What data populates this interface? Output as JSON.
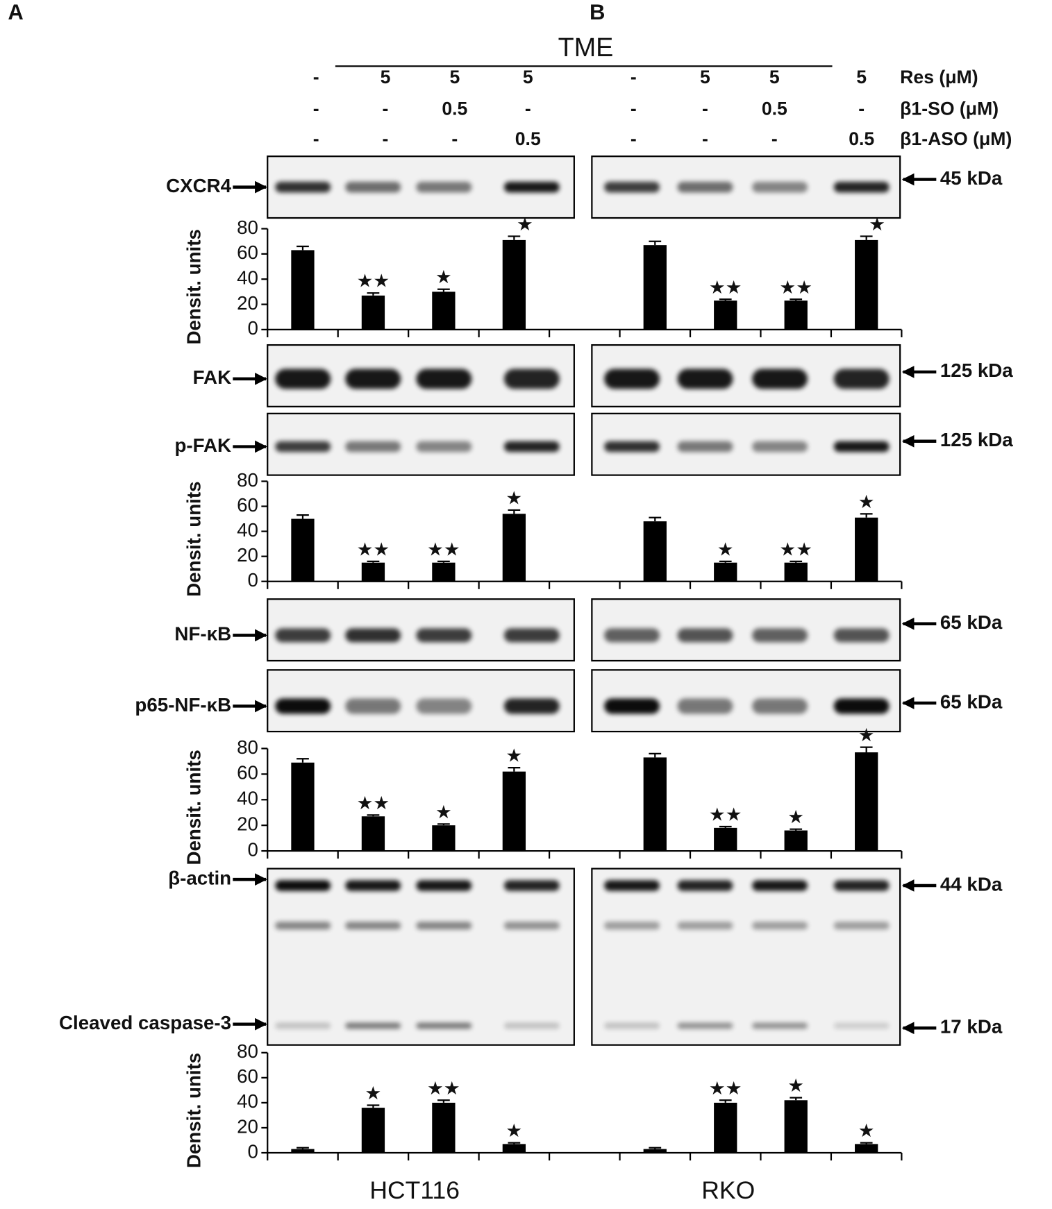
{
  "panels": [
    "A",
    "B"
  ],
  "header": "TME",
  "treatments": [
    {
      "label": "Res (μM)",
      "values": [
        "-",
        "5",
        "5",
        "5",
        "-",
        "5",
        "5",
        "5"
      ]
    },
    {
      "label": "β1-SO (μM)",
      "values": [
        "-",
        "-",
        "0.5",
        "-",
        "-",
        "-",
        "0.5",
        "-"
      ]
    },
    {
      "label": "β1-ASO (μM)",
      "values": [
        "-",
        "-",
        "-",
        "0.5",
        "-",
        "-",
        "-",
        "0.5"
      ]
    }
  ],
  "blots": [
    {
      "label": "CXCR4",
      "kda": "45 kDa"
    },
    {
      "label": "FAK",
      "kda": "125 kDa"
    },
    {
      "label": "p-FAK",
      "kda": "125 kDa"
    },
    {
      "label": "NF-κB",
      "kda": "65 kDa"
    },
    {
      "label": "p65-NF-κB",
      "kda": "65 kDa"
    },
    {
      "label": "β-actin",
      "kda": "44 kDa"
    },
    {
      "label": "Cleaved caspase-3",
      "kda": "17 kDa"
    }
  ],
  "cell_lines": [
    "HCT116",
    "RKO"
  ],
  "chart_data": [
    {
      "type": "bar",
      "y_label": "Densit. units",
      "color": "#000000",
      "categories": [
        null,
        null,
        null,
        null,
        null,
        null,
        null,
        null
      ],
      "values": [
        63,
        27,
        30,
        71,
        67,
        23,
        23,
        71
      ],
      "errors": [
        3,
        2,
        2,
        3,
        3,
        1,
        1,
        3
      ],
      "annotations": [
        null,
        "★★",
        "★",
        "★",
        null,
        "★★",
        "★★",
        "★"
      ],
      "ylim": [
        0,
        80
      ],
      "yticks": [
        0,
        20,
        40,
        60,
        80
      ]
    },
    {
      "type": "bar",
      "y_label": "Densit. units",
      "color": "#000000",
      "categories": [
        null,
        null,
        null,
        null,
        null,
        null,
        null,
        null
      ],
      "values": [
        50,
        15,
        15,
        54,
        48,
        15,
        15,
        51
      ],
      "errors": [
        3,
        1,
        1,
        3,
        3,
        1,
        1,
        3
      ],
      "annotations": [
        null,
        "★★",
        "★★",
        "★",
        null,
        "★",
        "★★",
        "★"
      ],
      "ylim": [
        0,
        80
      ],
      "yticks": [
        0,
        20,
        40,
        60,
        80
      ]
    },
    {
      "type": "bar",
      "y_label": "Densit. units",
      "color": "#000000",
      "categories": [
        null,
        null,
        null,
        null,
        null,
        null,
        null,
        null
      ],
      "values": [
        69,
        27,
        20,
        62,
        73,
        18,
        16,
        77
      ],
      "errors": [
        3,
        1,
        1,
        3,
        3,
        1,
        1,
        4
      ],
      "annotations": [
        null,
        "★★",
        "★",
        "★",
        null,
        "★★",
        "★",
        "★"
      ],
      "ylim": [
        0,
        80
      ],
      "yticks": [
        0,
        20,
        40,
        60,
        80
      ]
    },
    {
      "type": "bar",
      "y_label": "Densit. units",
      "color": "#000000",
      "categories": [
        null,
        null,
        null,
        null,
        null,
        null,
        null,
        null
      ],
      "values": [
        3,
        36,
        40,
        7,
        3,
        40,
        42,
        7
      ],
      "errors": [
        1,
        2,
        2,
        1,
        1,
        2,
        2,
        1
      ],
      "annotations": [
        null,
        "★",
        "★★",
        "★",
        null,
        "★★",
        "★",
        "★"
      ],
      "ylim": [
        0,
        80
      ],
      "yticks": [
        0,
        20,
        40,
        60,
        80
      ]
    }
  ]
}
